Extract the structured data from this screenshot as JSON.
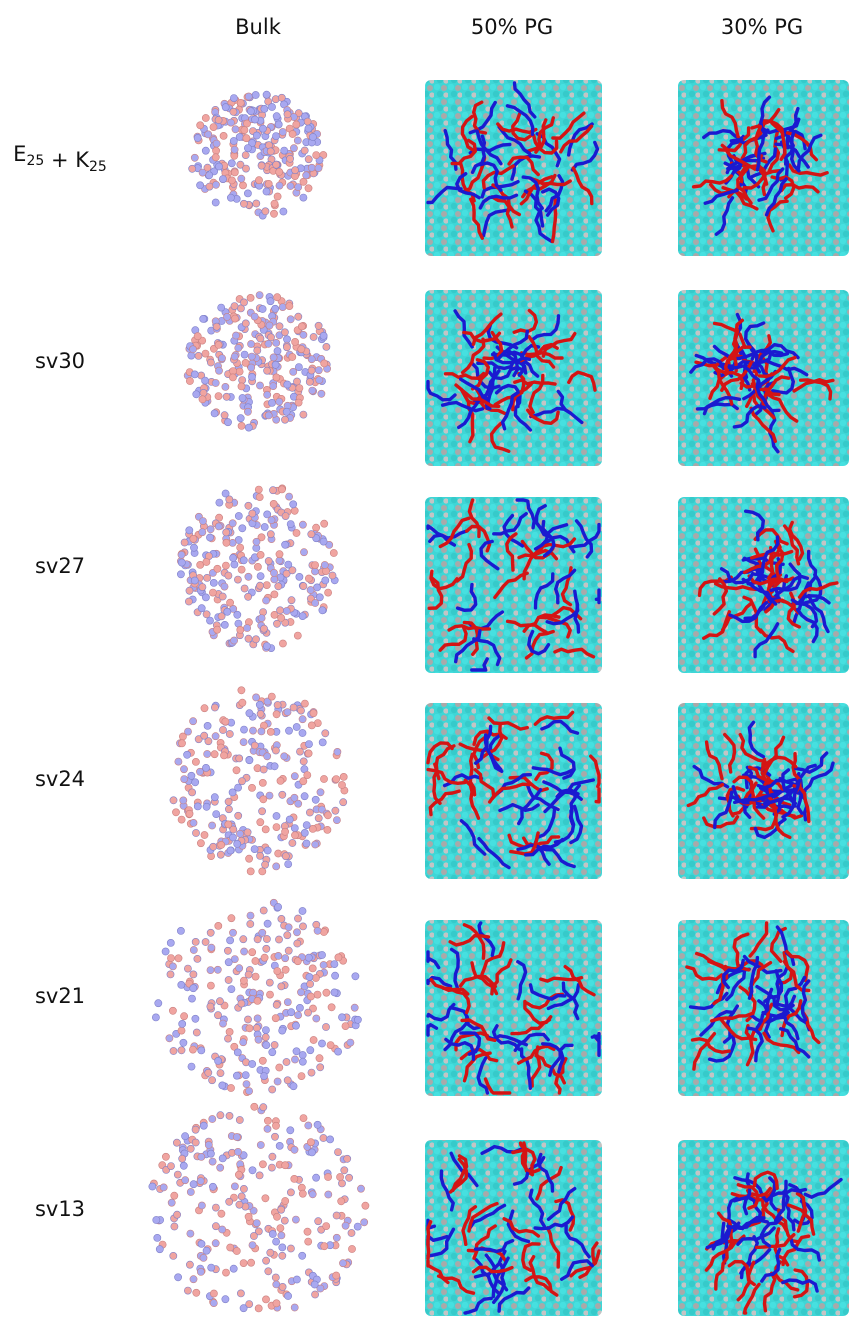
{
  "columns": [
    "Bulk",
    "50% PG",
    "30% PG"
  ],
  "rows": [
    {
      "parts": [
        {
          "text": "E",
          "sub": "25"
        },
        {
          "text": " + K",
          "sub": "25"
        }
      ]
    },
    {
      "text": "sv30"
    },
    {
      "text": "sv27"
    },
    {
      "text": "sv24"
    },
    {
      "text": "sv21"
    },
    {
      "text": "sv13"
    }
  ]
}
